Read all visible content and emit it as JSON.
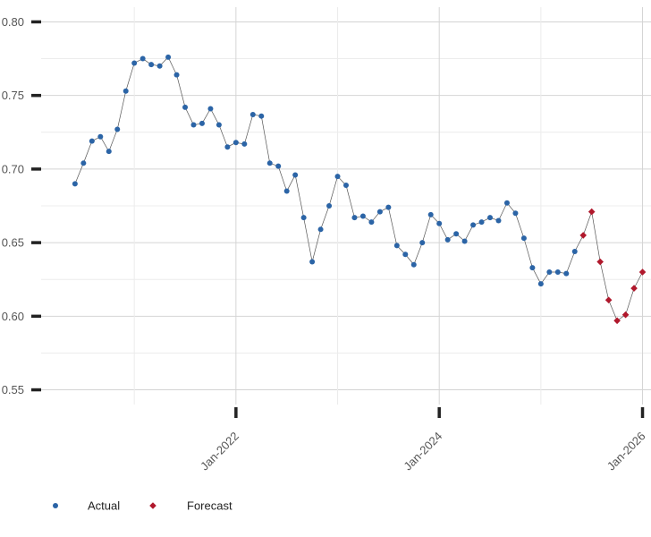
{
  "chart_data": {
    "type": "scatter",
    "y_ticks": [
      "0.80",
      "0.75",
      "0.70",
      "0.65",
      "0.60",
      "0.55"
    ],
    "y_tick_values": [
      0.8,
      0.75,
      0.7,
      0.65,
      0.6,
      0.55
    ],
    "x_ticks": [
      "Jan-2022",
      "Jan-2024",
      "Jan-2026"
    ],
    "x_tick_values": [
      "2022-01",
      "2024-01",
      "2026-01"
    ],
    "ylim": [
      0.54,
      0.81
    ],
    "xlim": [
      "2020-02",
      "2026-02"
    ],
    "grid": true,
    "legend_position": "bottom-left",
    "series": [
      {
        "name": "Actual",
        "color": "#2b64a6",
        "marker": "circle",
        "points": [
          [
            "2020-06",
            0.69
          ],
          [
            "2020-07",
            0.704
          ],
          [
            "2020-08",
            0.719
          ],
          [
            "2020-09",
            0.722
          ],
          [
            "2020-10",
            0.712
          ],
          [
            "2020-11",
            0.727
          ],
          [
            "2020-12",
            0.753
          ],
          [
            "2021-01",
            0.772
          ],
          [
            "2021-02",
            0.775
          ],
          [
            "2021-03",
            0.771
          ],
          [
            "2021-04",
            0.77
          ],
          [
            "2021-05",
            0.776
          ],
          [
            "2021-06",
            0.764
          ],
          [
            "2021-07",
            0.742
          ],
          [
            "2021-08",
            0.73
          ],
          [
            "2021-09",
            0.731
          ],
          [
            "2021-10",
            0.741
          ],
          [
            "2021-11",
            0.73
          ],
          [
            "2021-12",
            0.715
          ],
          [
            "2022-01",
            0.718
          ],
          [
            "2022-02",
            0.717
          ],
          [
            "2022-03",
            0.737
          ],
          [
            "2022-04",
            0.736
          ],
          [
            "2022-05",
            0.704
          ],
          [
            "2022-06",
            0.702
          ],
          [
            "2022-07",
            0.685
          ],
          [
            "2022-08",
            0.696
          ],
          [
            "2022-09",
            0.667
          ],
          [
            "2022-10",
            0.637
          ],
          [
            "2022-11",
            0.659
          ],
          [
            "2022-12",
            0.675
          ],
          [
            "2023-01",
            0.695
          ],
          [
            "2023-02",
            0.689
          ],
          [
            "2023-03",
            0.667
          ],
          [
            "2023-04",
            0.668
          ],
          [
            "2023-05",
            0.664
          ],
          [
            "2023-06",
            0.671
          ],
          [
            "2023-07",
            0.674
          ],
          [
            "2023-08",
            0.648
          ],
          [
            "2023-09",
            0.642
          ],
          [
            "2023-10",
            0.635
          ],
          [
            "2023-11",
            0.65
          ],
          [
            "2023-12",
            0.669
          ],
          [
            "2024-01",
            0.663
          ],
          [
            "2024-02",
            0.652
          ],
          [
            "2024-03",
            0.656
          ],
          [
            "2024-04",
            0.651
          ],
          [
            "2024-05",
            0.662
          ],
          [
            "2024-06",
            0.664
          ],
          [
            "2024-07",
            0.667
          ],
          [
            "2024-08",
            0.665
          ],
          [
            "2024-09",
            0.677
          ],
          [
            "2024-10",
            0.67
          ],
          [
            "2024-11",
            0.653
          ],
          [
            "2024-12",
            0.633
          ],
          [
            "2025-01",
            0.622
          ],
          [
            "2025-02",
            0.63
          ],
          [
            "2025-03",
            0.63
          ],
          [
            "2025-04",
            0.629
          ],
          [
            "2025-05",
            0.644
          ]
        ]
      },
      {
        "name": "Forecast",
        "color": "#b0182c",
        "marker": "diamond",
        "points": [
          [
            "2025-06",
            0.655
          ],
          [
            "2025-07",
            0.671
          ],
          [
            "2025-08",
            0.637
          ],
          [
            "2025-09",
            0.611
          ],
          [
            "2025-10",
            0.597
          ],
          [
            "2025-11",
            0.601
          ],
          [
            "2025-12",
            0.619
          ],
          [
            "2026-01",
            0.63
          ]
        ]
      }
    ]
  }
}
